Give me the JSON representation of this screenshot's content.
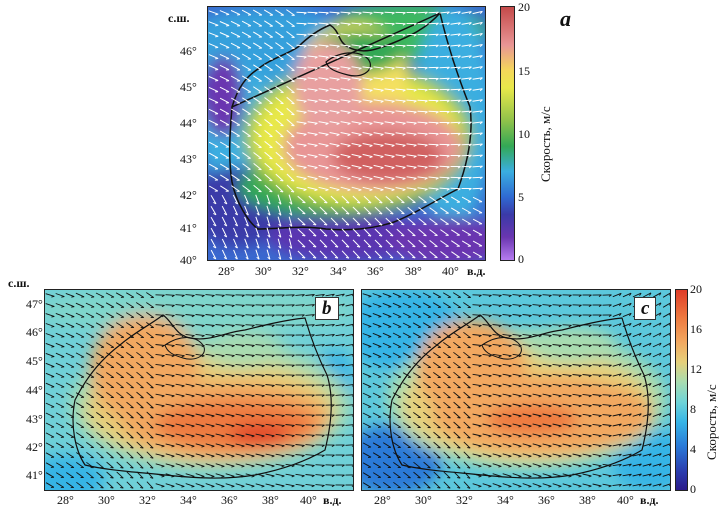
{
  "panel_a": {
    "label": "a",
    "lat_ticks": [
      "46°",
      "45°",
      "44°",
      "43°",
      "42°",
      "41°",
      "40°"
    ],
    "lon_ticks": [
      "28°",
      "30°",
      "32°",
      "34°",
      "36°",
      "38°",
      "40°"
    ],
    "north_label": "с.ш.",
    "east_label": "в.д.",
    "colorbar_ticks": [
      "20",
      "15",
      "10",
      "5",
      "0"
    ],
    "colorbar_title": "Скорость, м/с",
    "colormap": [
      "#b57cf0",
      "#6a36b0",
      "#3a3aa8",
      "#2f6ad2",
      "#3aaee0",
      "#33a855",
      "#8fc24a",
      "#e8e84a",
      "#f4d75a",
      "#e89595",
      "#c44a4a"
    ]
  },
  "panel_b": {
    "label": "b",
    "lat_ticks": [
      "47°",
      "46°",
      "45°",
      "44°",
      "43°",
      "42°",
      "41°"
    ],
    "lon_ticks": [
      "28°",
      "30°",
      "32°",
      "34°",
      "36°",
      "38°",
      "40°"
    ],
    "north_label": "с.ш.",
    "east_label": "в.д."
  },
  "panel_c": {
    "label": "c",
    "lon_ticks": [
      "28°",
      "30°",
      "32°",
      "34°",
      "36°",
      "38°",
      "40°"
    ],
    "east_label": "в.д.",
    "colorbar_ticks": [
      "20",
      "16",
      "12",
      "8",
      "4",
      "0"
    ],
    "colorbar_title": "Скорость, м/с",
    "colormap": [
      "#2a1a8a",
      "#2a3fb0",
      "#2a7ad8",
      "#36b4e6",
      "#6fd4d8",
      "#a8dcb0",
      "#e6d07a",
      "#f2a860",
      "#ee7a40",
      "#e03c28"
    ]
  }
}
